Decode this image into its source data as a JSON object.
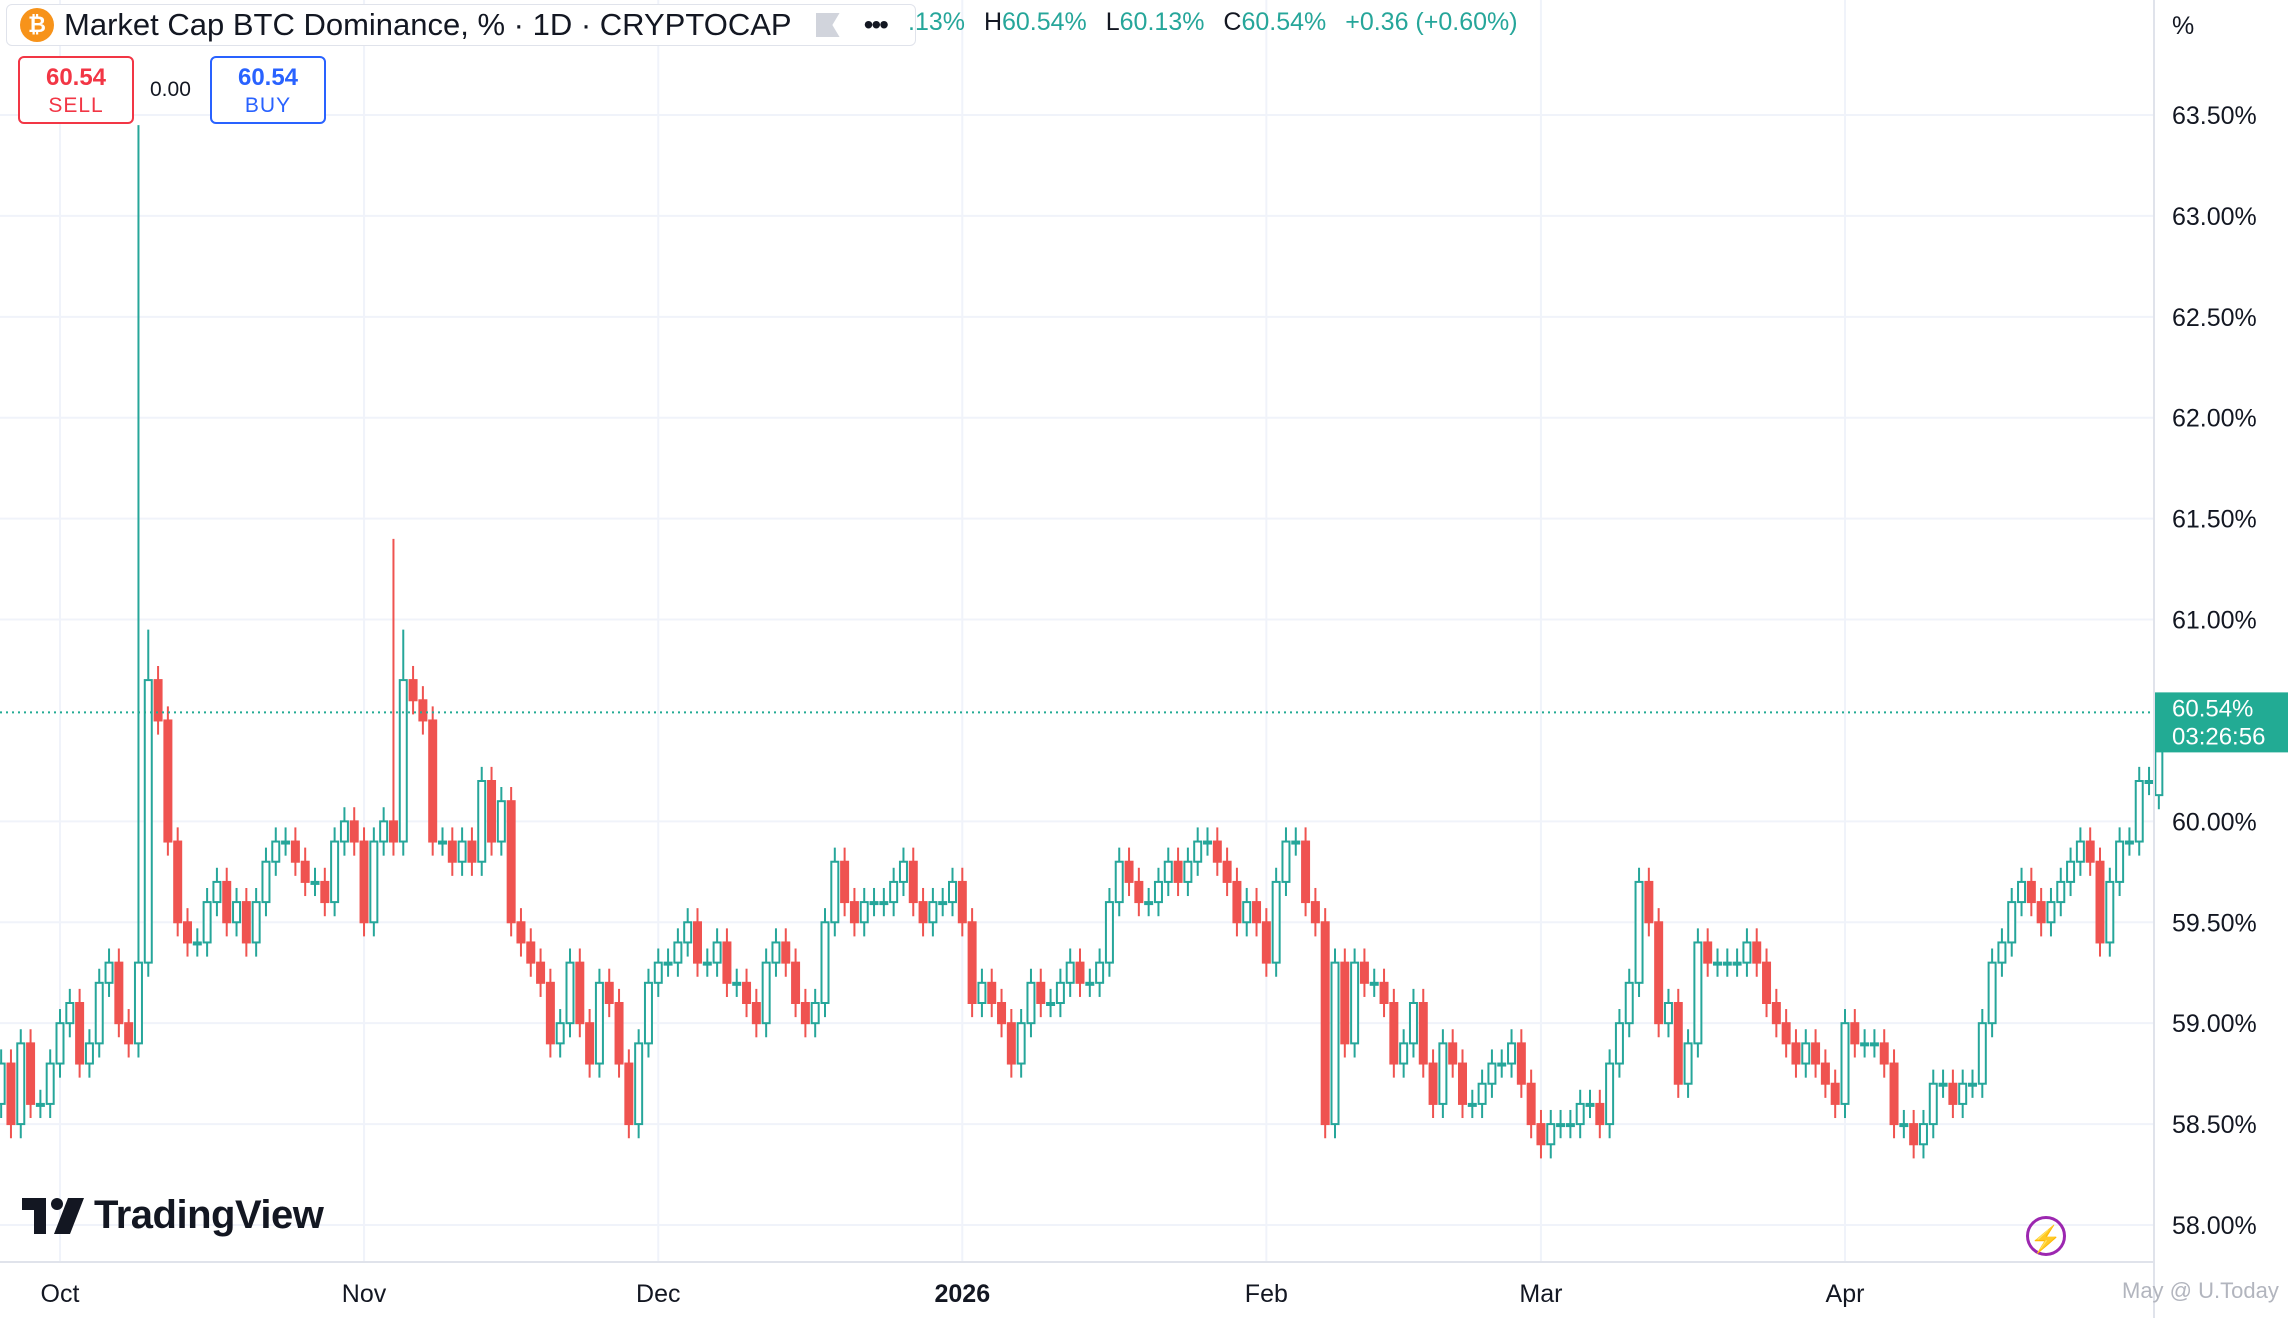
{
  "header": {
    "symbol_title": "Market Cap BTC Dominance, % · 1D · CRYPTOCAP",
    "btc_icon_glyph": "₿",
    "more_glyph": "•••",
    "ohlc": {
      "o_value": ".13%",
      "h_label": "H",
      "h_value": "60.54%",
      "l_label": "L",
      "l_value": "60.13%",
      "c_label": "C",
      "c_value": "60.54%",
      "change": "+0.36 (+0.60%)"
    }
  },
  "trade": {
    "sell_price": "60.54",
    "sell_label": "SELL",
    "spread": "0.00",
    "buy_price": "60.54",
    "buy_label": "BUY"
  },
  "axis": {
    "unit": "%"
  },
  "branding": {
    "logo_text": "TradingView",
    "watermark": "May @ U.Today"
  },
  "icons": {
    "bolt": "⚡"
  },
  "colors": {
    "up": "#26a69a",
    "down": "#ef5350",
    "grid": "#f0f3fa",
    "price_tag": "#22ab94"
  },
  "chart_data": {
    "type": "candlestick",
    "title": "Market Cap BTC Dominance, % · 1D · CRYPTOCAP",
    "ylim": [
      57.9,
      64.0
    ],
    "y_ticks": [
      "63.50%",
      "63.00%",
      "62.50%",
      "62.00%",
      "61.50%",
      "61.00%",
      "60.00%",
      "59.50%",
      "59.00%",
      "58.50%",
      "58.00%"
    ],
    "y_tick_values": [
      63.5,
      63.0,
      62.5,
      62.0,
      61.5,
      61.0,
      60.0,
      59.5,
      59.0,
      58.5,
      58.0
    ],
    "x_ticks": [
      {
        "label": "Oct",
        "date": "2025-10-01",
        "bold": false
      },
      {
        "label": "Nov",
        "date": "2025-11-01",
        "bold": false
      },
      {
        "label": "Dec",
        "date": "2025-12-01",
        "bold": false
      },
      {
        "label": "2026",
        "date": "2026-01-01",
        "bold": true
      },
      {
        "label": "Feb",
        "date": "2026-02-01",
        "bold": false
      },
      {
        "label": "Mar",
        "date": "2026-03-01",
        "bold": false
      },
      {
        "label": "Apr",
        "date": "2026-04-01",
        "bold": false
      }
    ],
    "current_price": {
      "value": 60.54,
      "label": "60.54%",
      "countdown": "03:26:56"
    },
    "first_date": "2025-09-25",
    "last_date": "2026-04-21",
    "close": [
      58.8,
      58.5,
      58.9,
      58.6,
      58.6,
      58.8,
      59.0,
      59.1,
      58.8,
      58.9,
      59.2,
      59.3,
      59.0,
      58.9,
      59.3,
      60.7,
      60.5,
      59.9,
      59.5,
      59.4,
      59.4,
      59.6,
      59.7,
      59.5,
      59.6,
      59.4,
      59.6,
      59.8,
      59.9,
      59.9,
      59.8,
      59.7,
      59.7,
      59.6,
      59.9,
      60.0,
      59.9,
      59.5,
      59.9,
      60.0,
      59.9,
      60.7,
      60.6,
      60.5,
      59.9,
      59.9,
      59.8,
      59.9,
      59.8,
      60.2,
      59.9,
      60.1,
      59.5,
      59.4,
      59.3,
      59.2,
      58.9,
      59.0,
      59.3,
      59.0,
      58.8,
      59.2,
      59.1,
      58.8,
      58.5,
      58.9,
      59.2,
      59.3,
      59.3,
      59.4,
      59.5,
      59.3,
      59.3,
      59.4,
      59.2,
      59.2,
      59.1,
      59.0,
      59.3,
      59.4,
      59.3,
      59.1,
      59.0,
      59.1,
      59.5,
      59.8,
      59.6,
      59.5,
      59.6,
      59.6,
      59.6,
      59.7,
      59.8,
      59.6,
      59.5,
      59.6,
      59.6,
      59.7,
      59.5,
      59.1,
      59.2,
      59.1,
      59.0,
      58.8,
      59.0,
      59.2,
      59.1,
      59.1,
      59.2,
      59.3,
      59.2,
      59.2,
      59.3,
      59.6,
      59.8,
      59.7,
      59.6,
      59.6,
      59.7,
      59.8,
      59.7,
      59.8,
      59.9,
      59.9,
      59.8,
      59.7,
      59.5,
      59.6,
      59.5,
      59.3,
      59.7,
      59.9,
      59.9,
      59.6,
      59.5,
      58.5,
      59.3,
      58.9,
      59.3,
      59.2,
      59.2,
      59.1,
      58.8,
      58.9,
      59.1,
      58.8,
      58.6,
      58.9,
      58.8,
      58.6,
      58.6,
      58.7,
      58.8,
      58.8,
      58.9,
      58.7,
      58.5,
      58.4,
      58.5,
      58.5,
      58.5,
      58.6,
      58.6,
      58.5,
      58.8,
      59.0,
      59.2,
      59.7,
      59.5,
      59.0,
      59.1,
      58.7,
      58.9,
      59.4,
      59.3,
      59.3,
      59.3,
      59.3,
      59.4,
      59.3,
      59.1,
      59.0,
      58.9,
      58.8,
      58.9,
      58.8,
      58.7,
      58.6,
      59.0,
      58.9,
      58.9,
      58.9,
      58.8,
      58.5,
      58.5,
      58.4,
      58.5,
      58.7,
      58.7,
      58.6,
      58.7,
      58.7,
      59.0,
      59.3,
      59.4,
      59.6,
      59.7,
      59.6,
      59.5,
      59.6,
      59.7,
      59.8,
      59.9,
      59.8,
      59.4,
      59.7,
      59.9,
      59.9,
      60.2,
      60.2,
      60.54
    ],
    "open": [
      58.6,
      58.8,
      58.5,
      58.9,
      58.6,
      58.6,
      58.8,
      59.0,
      59.1,
      58.8,
      58.9,
      59.2,
      59.3,
      59.0,
      58.9,
      59.3,
      60.7,
      60.5,
      59.9,
      59.5,
      59.4,
      59.4,
      59.6,
      59.7,
      59.5,
      59.6,
      59.4,
      59.6,
      59.8,
      59.9,
      59.9,
      59.8,
      59.7,
      59.7,
      59.6,
      59.9,
      60.0,
      59.9,
      59.5,
      59.9,
      60.0,
      59.9,
      60.7,
      60.6,
      60.5,
      59.9,
      59.9,
      59.8,
      59.9,
      59.8,
      60.2,
      59.9,
      60.1,
      59.5,
      59.4,
      59.3,
      59.2,
      58.9,
      59.0,
      59.3,
      59.0,
      58.8,
      59.2,
      59.1,
      58.8,
      58.5,
      58.9,
      59.2,
      59.3,
      59.3,
      59.4,
      59.5,
      59.3,
      59.3,
      59.4,
      59.2,
      59.2,
      59.1,
      59.0,
      59.3,
      59.4,
      59.3,
      59.1,
      59.0,
      59.1,
      59.5,
      59.8,
      59.6,
      59.5,
      59.6,
      59.6,
      59.6,
      59.7,
      59.8,
      59.6,
      59.5,
      59.6,
      59.6,
      59.7,
      59.5,
      59.1,
      59.2,
      59.1,
      59.0,
      58.8,
      59.0,
      59.2,
      59.1,
      59.1,
      59.2,
      59.3,
      59.2,
      59.2,
      59.3,
      59.6,
      59.8,
      59.7,
      59.6,
      59.6,
      59.7,
      59.8,
      59.7,
      59.8,
      59.9,
      59.9,
      59.8,
      59.7,
      59.5,
      59.6,
      59.5,
      59.3,
      59.7,
      59.9,
      59.9,
      59.6,
      59.5,
      58.5,
      59.3,
      58.9,
      59.3,
      59.2,
      59.2,
      59.1,
      58.8,
      58.9,
      59.1,
      58.8,
      58.6,
      58.9,
      58.8,
      58.6,
      58.6,
      58.7,
      58.8,
      58.8,
      58.9,
      58.7,
      58.5,
      58.4,
      58.5,
      58.5,
      58.5,
      58.6,
      58.6,
      58.5,
      58.8,
      59.0,
      59.2,
      59.7,
      59.5,
      59.0,
      59.1,
      58.7,
      58.9,
      59.4,
      59.3,
      59.3,
      59.3,
      59.3,
      59.4,
      59.3,
      59.1,
      59.0,
      58.9,
      58.8,
      58.9,
      58.8,
      58.7,
      58.6,
      59.0,
      58.9,
      58.9,
      58.9,
      58.8,
      58.5,
      58.5,
      58.4,
      58.5,
      58.7,
      58.7,
      58.6,
      58.7,
      58.7,
      59.0,
      59.3,
      59.4,
      59.6,
      59.7,
      59.6,
      59.5,
      59.6,
      59.7,
      59.8,
      59.9,
      59.8,
      59.4,
      59.7,
      59.9,
      59.9,
      60.2,
      60.13
    ],
    "spikes": [
      {
        "date": "2025-10-09",
        "high": 63.45
      },
      {
        "date": "2025-11-04",
        "high": 61.4
      },
      {
        "date": "2025-10-10",
        "high": 60.95
      },
      {
        "date": "2025-11-05",
        "high": 60.95
      }
    ]
  }
}
